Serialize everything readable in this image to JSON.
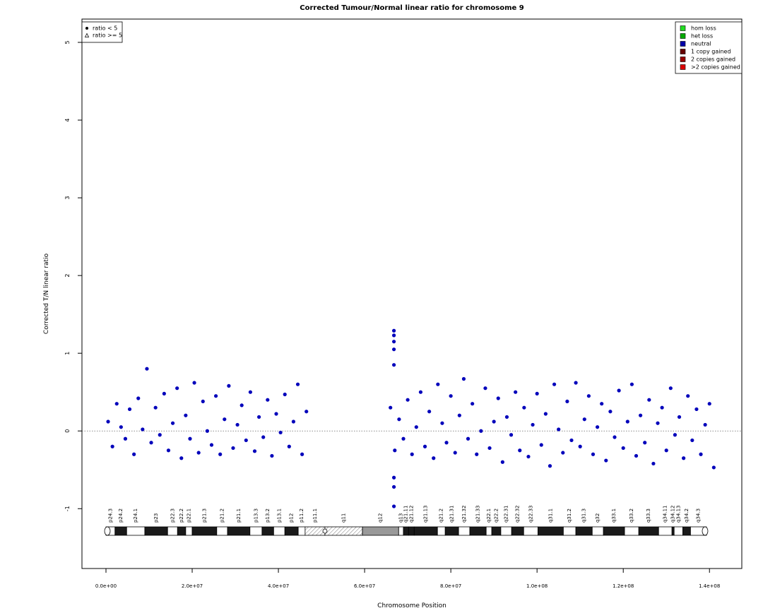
{
  "chart_data": {
    "type": "scatter",
    "title": "Corrected Tumour/Normal linear ratio for chromosome  9",
    "x_label": "Chromosome Position",
    "y_label": "Corrected T/N linear ratio",
    "xlim": [
      -5570000,
      147500000
    ],
    "ylim": [
      -1.77,
      5.3
    ],
    "xticks": [
      {
        "value": 0,
        "label": "0.0e+00"
      },
      {
        "value": 20000000,
        "label": "2.0e+07"
      },
      {
        "value": 40000000,
        "label": "4.0e+07"
      },
      {
        "value": 60000000,
        "label": "6.0e+07"
      },
      {
        "value": 80000000,
        "label": "8.0e+07"
      },
      {
        "value": 100000000,
        "label": "1.0e+08"
      },
      {
        "value": 120000000,
        "label": "1.2e+08"
      },
      {
        "value": 140000000,
        "label": "1.4e+08"
      }
    ],
    "yticks": [
      -1,
      0,
      1,
      2,
      3,
      4,
      5
    ],
    "reference_line": 0,
    "shape_legend": [
      {
        "label": "ratio < 5",
        "shape": "dot"
      },
      {
        "label": "ratio >= 5",
        "shape": "triangle"
      }
    ],
    "color_legend": [
      {
        "label": "hom loss",
        "color": "#22dd22"
      },
      {
        "label": "het loss",
        "color": "#00aa00"
      },
      {
        "label": "neutral",
        "color": "#0000aa"
      },
      {
        "label": "1 copy gained",
        "color": "#660000"
      },
      {
        "label": "2 copies gained",
        "color": "#990000"
      },
      {
        "label": ">2 copies gained",
        "color": "#dd0000"
      }
    ],
    "x": [
      500000,
      1500000,
      2500000,
      3500000,
      4500000,
      5500000,
      6500000,
      7500000,
      8500000,
      9500000,
      10500000,
      11500000,
      12500000,
      13500000,
      14500000,
      15500000,
      16500000,
      17500000,
      18500000,
      19500000,
      20500000,
      21500000,
      22500000,
      23500000,
      24500000,
      25500000,
      26500000,
      27500000,
      28500000,
      29500000,
      30500000,
      31500000,
      32500000,
      33500000,
      34500000,
      35500000,
      36500000,
      37500000,
      38500000,
      39500000,
      40500000,
      41500000,
      42500000,
      43500000,
      44500000,
      45500000,
      46500000,
      66800000,
      66800000,
      66800000,
      66800000,
      66800000,
      66800000,
      66800000,
      66800000,
      66000000,
      67000000,
      68000000,
      69000000,
      70000000,
      71000000,
      72000000,
      73000000,
      74000000,
      75000000,
      76000000,
      77000000,
      78000000,
      79000000,
      80000000,
      81000000,
      82000000,
      83000000,
      84000000,
      85000000,
      86000000,
      87000000,
      88000000,
      89000000,
      90000000,
      91000000,
      92000000,
      93000000,
      94000000,
      95000000,
      96000000,
      97000000,
      98000000,
      99000000,
      100000000,
      101000000,
      102000000,
      103000000,
      104000000,
      105000000,
      106000000,
      107000000,
      108000000,
      109000000,
      110000000,
      111000000,
      112000000,
      113000000,
      114000000,
      115000000,
      116000000,
      117000000,
      118000000,
      119000000,
      120000000,
      121000000,
      122000000,
      123000000,
      124000000,
      125000000,
      126000000,
      127000000,
      128000000,
      129000000,
      130000000,
      131000000,
      132000000,
      133000000,
      134000000,
      135000000,
      136000000,
      137000000,
      138000000,
      139000000,
      140000000,
      141000000
    ],
    "series": [
      {
        "name": "ratio < 5",
        "color": "#0000bb",
        "values": [
          0.12,
          -0.2,
          0.35,
          0.05,
          -0.1,
          0.28,
          -0.3,
          0.42,
          0.02,
          0.8,
          -0.15,
          0.3,
          -0.05,
          0.48,
          -0.25,
          0.1,
          0.55,
          -0.35,
          0.2,
          -0.1,
          0.62,
          -0.28,
          0.38,
          0.0,
          -0.18,
          0.45,
          -0.3,
          0.15,
          0.58,
          -0.22,
          0.08,
          0.33,
          -0.12,
          0.5,
          -0.26,
          0.18,
          -0.08,
          0.4,
          -0.32,
          0.22,
          -0.02,
          0.47,
          -0.2,
          0.12,
          0.6,
          -0.3,
          0.25,
          1.29,
          1.23,
          1.15,
          1.05,
          0.85,
          -0.72,
          -0.97,
          -0.6,
          0.3,
          -0.25,
          0.15,
          -0.1,
          0.4,
          -0.3,
          0.05,
          0.5,
          -0.2,
          0.25,
          -0.35,
          0.6,
          0.1,
          -0.15,
          0.45,
          -0.28,
          0.2,
          0.67,
          -0.1,
          0.35,
          -0.3,
          0.0,
          0.55,
          -0.22,
          0.12,
          0.42,
          -0.4,
          0.18,
          -0.05,
          0.5,
          -0.25,
          0.3,
          -0.33,
          0.08,
          0.48,
          -0.18,
          0.22,
          -0.45,
          0.6,
          0.02,
          -0.28,
          0.38,
          -0.12,
          0.62,
          -0.2,
          0.15,
          0.45,
          -0.3,
          0.05,
          0.35,
          -0.38,
          0.25,
          -0.08,
          0.52,
          -0.22,
          0.12,
          0.6,
          -0.32,
          0.2,
          -0.15,
          0.4,
          -0.42,
          0.1,
          0.3,
          -0.25,
          0.55,
          -0.05,
          0.18,
          -0.35,
          0.45,
          -0.12,
          0.28,
          -0.3,
          0.08,
          0.35,
          -0.47
        ]
      }
    ],
    "ideogram": {
      "bands": [
        {
          "name": "p24.3",
          "start": 0,
          "end": 2100000,
          "stain": "gneg"
        },
        {
          "name": "p24.2",
          "start": 2100000,
          "end": 4800000,
          "stain": "gpos"
        },
        {
          "name": "p24.1",
          "start": 4800000,
          "end": 9000000,
          "stain": "gneg"
        },
        {
          "name": "p23",
          "start": 9000000,
          "end": 14300000,
          "stain": "gpos"
        },
        {
          "name": "p22.3",
          "start": 14300000,
          "end": 16600000,
          "stain": "gneg"
        },
        {
          "name": "p22.2",
          "start": 16600000,
          "end": 18500000,
          "stain": "gpos"
        },
        {
          "name": "p22.1",
          "start": 18500000,
          "end": 20000000,
          "stain": "gneg"
        },
        {
          "name": "p21.3",
          "start": 20000000,
          "end": 25700000,
          "stain": "gpos"
        },
        {
          "name": "p21.2",
          "start": 25700000,
          "end": 28200000,
          "stain": "gneg"
        },
        {
          "name": "p21.1",
          "start": 28200000,
          "end": 33400000,
          "stain": "gpos"
        },
        {
          "name": "p13.3",
          "start": 33400000,
          "end": 36200000,
          "stain": "gneg"
        },
        {
          "name": "p13.2",
          "start": 36200000,
          "end": 38900000,
          "stain": "gpos"
        },
        {
          "name": "p13.1",
          "start": 38900000,
          "end": 41500000,
          "stain": "gneg"
        },
        {
          "name": "p12",
          "start": 41500000,
          "end": 44600000,
          "stain": "gpos"
        },
        {
          "name": "p11.2",
          "start": 44600000,
          "end": 46200000,
          "stain": "gneg"
        },
        {
          "name": "p11.1",
          "start": 46200000,
          "end": 50800000,
          "stain": "acen"
        },
        {
          "name": "q11",
          "start": 50800000,
          "end": 59500000,
          "stain": "acen"
        },
        {
          "name": "q12",
          "start": 59500000,
          "end": 67900000,
          "stain": "gvar"
        },
        {
          "name": "q13",
          "start": 67900000,
          "end": 69000000,
          "stain": "gneg"
        },
        {
          "name": "q21.11",
          "start": 69000000,
          "end": 70200000,
          "stain": "gpos"
        },
        {
          "name": "q21.12",
          "start": 70200000,
          "end": 71500000,
          "stain": "gpos"
        },
        {
          "name": "q21.13",
          "start": 71500000,
          "end": 76900000,
          "stain": "gpos"
        },
        {
          "name": "q21.2",
          "start": 76900000,
          "end": 78700000,
          "stain": "gneg"
        },
        {
          "name": "q21.31",
          "start": 78700000,
          "end": 81800000,
          "stain": "gpos"
        },
        {
          "name": "q21.32",
          "start": 81800000,
          "end": 84400000,
          "stain": "gneg"
        },
        {
          "name": "q21.33",
          "start": 84400000,
          "end": 88200000,
          "stain": "gpos"
        },
        {
          "name": "q22.1",
          "start": 88200000,
          "end": 89500000,
          "stain": "gneg"
        },
        {
          "name": "q22.2",
          "start": 89500000,
          "end": 91600000,
          "stain": "gpos"
        },
        {
          "name": "q22.31",
          "start": 91600000,
          "end": 94100000,
          "stain": "gneg"
        },
        {
          "name": "q22.32",
          "start": 94100000,
          "end": 96900000,
          "stain": "gpos"
        },
        {
          "name": "q22.33",
          "start": 96900000,
          "end": 100200000,
          "stain": "gneg"
        },
        {
          "name": "q31.1",
          "start": 100200000,
          "end": 106100000,
          "stain": "gpos"
        },
        {
          "name": "q31.2",
          "start": 106100000,
          "end": 109000000,
          "stain": "gneg"
        },
        {
          "name": "q31.3",
          "start": 109000000,
          "end": 112800000,
          "stain": "gpos"
        },
        {
          "name": "q32",
          "start": 112800000,
          "end": 115400000,
          "stain": "gneg"
        },
        {
          "name": "q33.1",
          "start": 115400000,
          "end": 120300000,
          "stain": "gpos"
        },
        {
          "name": "q33.2",
          "start": 120300000,
          "end": 123600000,
          "stain": "gneg"
        },
        {
          "name": "q33.3",
          "start": 123600000,
          "end": 128200000,
          "stain": "gpos"
        },
        {
          "name": "q34.11",
          "start": 128200000,
          "end": 131300000,
          "stain": "gneg"
        },
        {
          "name": "q34.12",
          "start": 131300000,
          "end": 131800000,
          "stain": "gpos"
        },
        {
          "name": "q34.13",
          "start": 131800000,
          "end": 133800000,
          "stain": "gneg"
        },
        {
          "name": "q34.2",
          "start": 133800000,
          "end": 135600000,
          "stain": "gpos"
        },
        {
          "name": "q34.3",
          "start": 135600000,
          "end": 139300000,
          "stain": "gneg"
        }
      ],
      "stain_colors": {
        "gneg": "#ffffff",
        "gpos": "#1a1a1a",
        "gvar": "#999999",
        "acen": "url(#hatch)"
      }
    }
  }
}
